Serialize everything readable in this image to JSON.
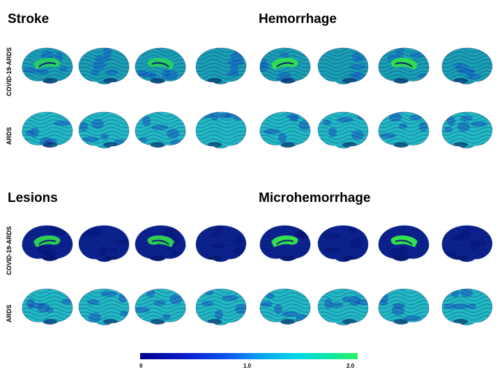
{
  "panels": [
    {
      "title": "Stroke"
    },
    {
      "title": "Hemorrhage"
    },
    {
      "title": "Lesions"
    },
    {
      "title": "Microhemorrhage"
    }
  ],
  "row_labels": [
    "COVID-19-ARDS",
    "ARDS"
  ],
  "colorbar": {
    "tick_labels": [
      "0",
      "1.0",
      "2.0"
    ],
    "colors": [
      "#00008c",
      "#0a1fd0",
      "#0a55ee",
      "#0aa0f0",
      "#00d8e8",
      "#10e8a0",
      "#2bf060"
    ]
  },
  "colors": {
    "cyan": "#1fb7c2",
    "teal": "#1a9aa9",
    "green": "#33e04f",
    "dark_blue": "#0b1f8a"
  }
}
